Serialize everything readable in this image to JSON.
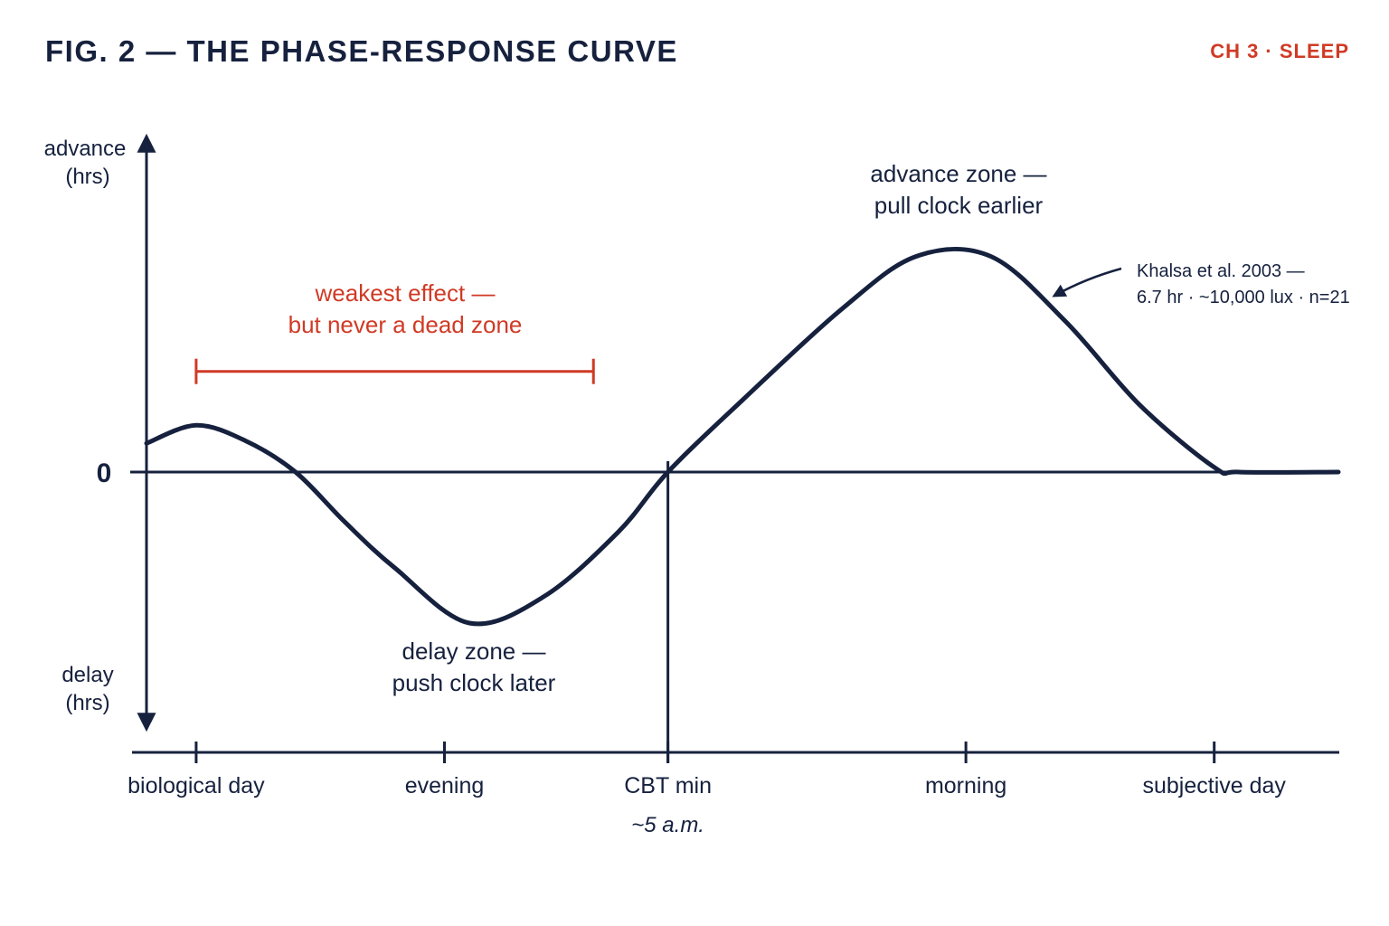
{
  "header": {
    "title": "FIG. 2 — THE  PHASE-RESPONSE CURVE",
    "chapter": "CH 3 · SLEEP"
  },
  "colors": {
    "ink": "#16213e",
    "accent": "#d03a25"
  },
  "chart_data": {
    "type": "line",
    "title": "FIG. 2 — THE  PHASE-RESPONSE CURVE",
    "y_axis": {
      "top_label": [
        "advance",
        "(hrs)"
      ],
      "bottom_label": [
        "delay",
        "(hrs)"
      ],
      "zero_label": "0",
      "ylim": [
        -1,
        1
      ]
    },
    "x_axis": {
      "xlim": [
        0,
        24
      ],
      "ticks": [
        {
          "x": 1,
          "label": "biological day"
        },
        {
          "x": 6,
          "label": "evening"
        },
        {
          "x": 10.5,
          "label": "CBT min",
          "sublabel": "~5 a.m."
        },
        {
          "x": 16.5,
          "label": "morning"
        },
        {
          "x": 21.5,
          "label": "subjective day"
        }
      ]
    },
    "series": [
      {
        "points": [
          [
            0,
            0.12
          ],
          [
            1,
            0.195
          ],
          [
            2,
            0.13
          ],
          [
            3,
            0.0
          ],
          [
            4,
            -0.21
          ],
          [
            5,
            -0.4
          ],
          [
            6.5,
            -0.63
          ],
          [
            8,
            -0.52
          ],
          [
            9.5,
            -0.25
          ],
          [
            10.5,
            0.0
          ],
          [
            12,
            0.3
          ],
          [
            14,
            0.68
          ],
          [
            15.5,
            0.9
          ],
          [
            17,
            0.9
          ],
          [
            18.5,
            0.63
          ],
          [
            20,
            0.28
          ],
          [
            21.5,
            0.02
          ],
          [
            22,
            0.0
          ],
          [
            24,
            0.0
          ]
        ]
      }
    ],
    "annotations": {
      "weak_range": {
        "x": [
          1,
          9
        ],
        "y": 0.42,
        "text": [
          "weakest effect —",
          "but never a dead zone"
        ]
      },
      "delay_zone": {
        "text": [
          "delay zone —",
          "push clock later"
        ]
      },
      "advance_zone": {
        "text": [
          "advance zone —",
          "pull clock earlier"
        ]
      },
      "source": {
        "text": [
          "Khalsa et al. 2003 —",
          "6.7 hr · ~10,000 lux · n=21"
        ]
      },
      "cbt_min_x": 10.5
    }
  }
}
